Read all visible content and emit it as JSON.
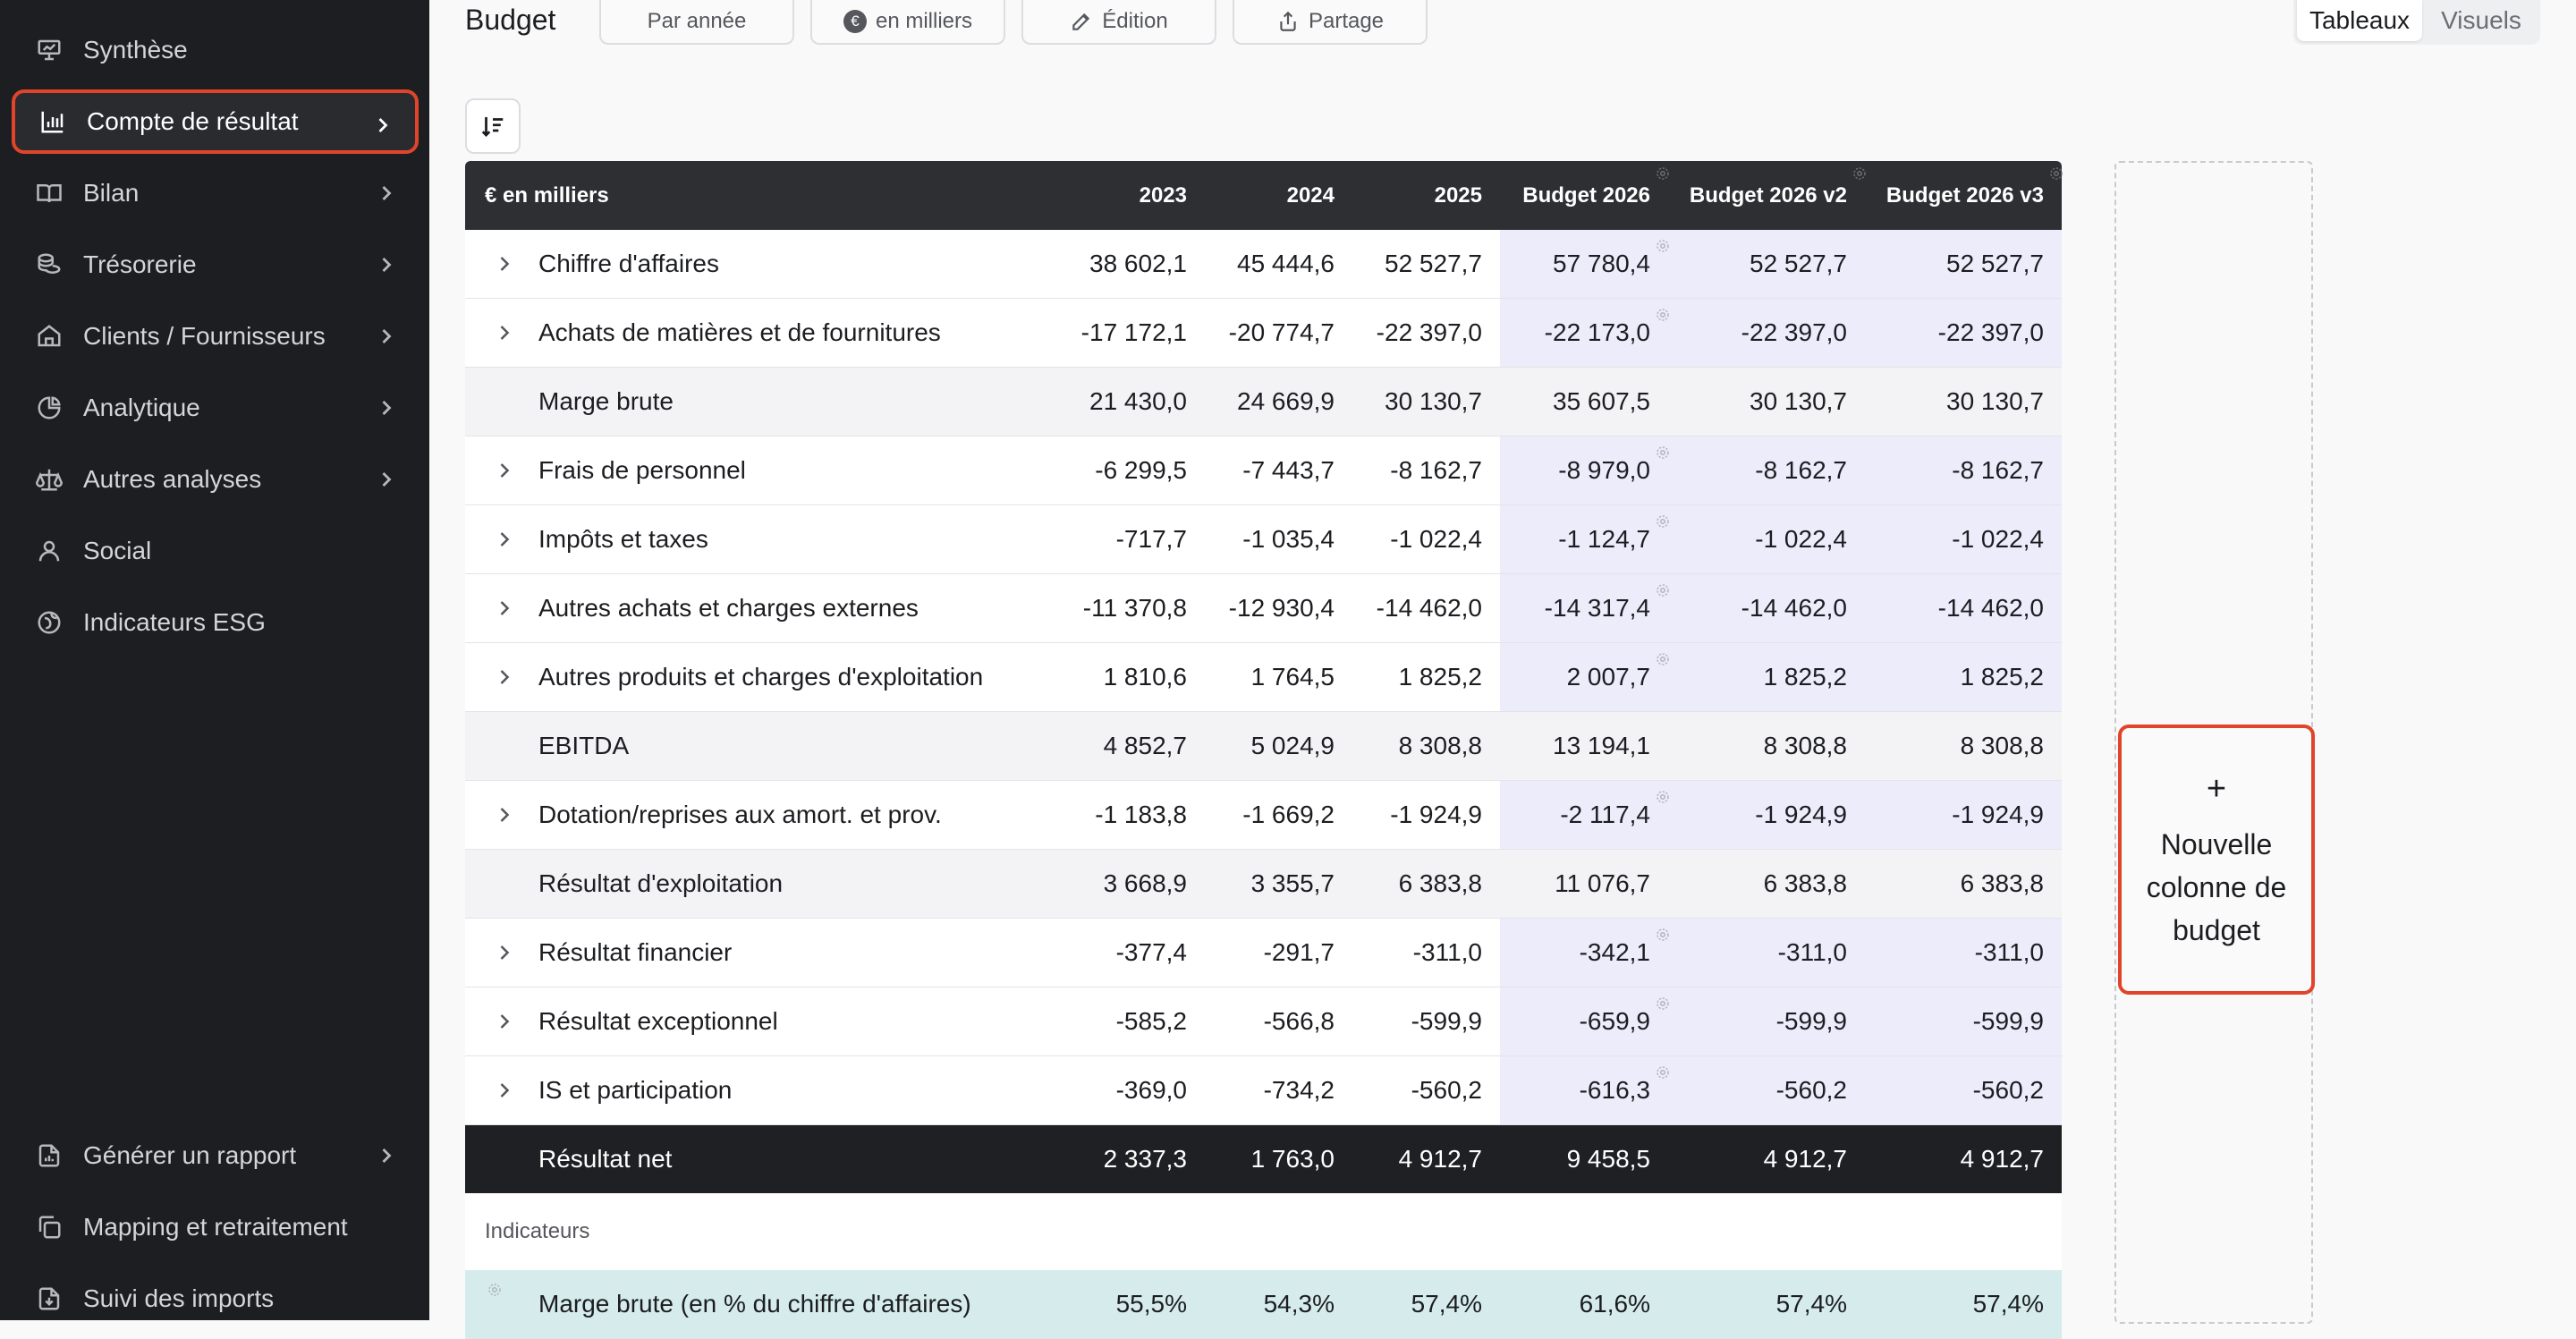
{
  "sidebar": {
    "items": [
      {
        "label": "Synthèse",
        "icon": "presentation-icon",
        "chevron": false
      },
      {
        "label": "Compte de résultat",
        "icon": "bar-chart-icon",
        "chevron": true
      },
      {
        "label": "Bilan",
        "icon": "book-icon",
        "chevron": true
      },
      {
        "label": "Trésorerie",
        "icon": "coins-icon",
        "chevron": true
      },
      {
        "label": "Clients / Fournisseurs",
        "icon": "store-icon",
        "chevron": true
      },
      {
        "label": "Analytique",
        "icon": "pie-chart-icon",
        "chevron": true
      },
      {
        "label": "Autres analyses",
        "icon": "scale-icon",
        "chevron": true
      },
      {
        "label": "Social",
        "icon": "user-icon",
        "chevron": false
      },
      {
        "label": "Indicateurs ESG",
        "icon": "leaf-globe-icon",
        "chevron": false
      }
    ],
    "bottom_items": [
      {
        "label": "Générer un rapport",
        "icon": "file-chart-icon",
        "chevron": true
      },
      {
        "label": "Mapping et retraitement",
        "icon": "copy-icon",
        "chevron": false
      },
      {
        "label": "Suivi des imports",
        "icon": "file-import-icon",
        "chevron": false
      }
    ]
  },
  "header": {
    "title": "Budget",
    "buttons": {
      "par_annee": "Par année",
      "unit": "en milliers",
      "unit_badge": "€",
      "edition": "Édition",
      "partage": "Partage"
    },
    "view_toggle": {
      "tableaux": "Tableaux",
      "visuels": "Visuels"
    }
  },
  "table": {
    "header": {
      "label": "€ en milliers",
      "cols": [
        "2023",
        "2024",
        "2025",
        "Budget 2026",
        "Budget 2026 v2",
        "Budget 2026 v3"
      ]
    },
    "rows": [
      {
        "label": "Chiffre d'affaires",
        "values": [
          "38 602,1",
          "45 444,6",
          "52 527,7",
          "57 780,4",
          "52 527,7",
          "52 527,7"
        ]
      },
      {
        "label": "Achats de matières et de fournitures",
        "values": [
          "-17 172,1",
          "-20 774,7",
          "-22 397,0",
          "-22 173,0",
          "-22 397,0",
          "-22 397,0"
        ]
      },
      {
        "label": "Marge brute",
        "values": [
          "21 430,0",
          "24 669,9",
          "30 130,7",
          "35 607,5",
          "30 130,7",
          "30 130,7"
        ]
      },
      {
        "label": "Frais de personnel",
        "values": [
          "-6 299,5",
          "-7 443,7",
          "-8 162,7",
          "-8 979,0",
          "-8 162,7",
          "-8 162,7"
        ]
      },
      {
        "label": "Impôts et taxes",
        "values": [
          "-717,7",
          "-1 035,4",
          "-1 022,4",
          "-1 124,7",
          "-1 022,4",
          "-1 022,4"
        ]
      },
      {
        "label": "Autres achats et charges externes",
        "values": [
          "-11 370,8",
          "-12 930,4",
          "-14 462,0",
          "-14 317,4",
          "-14 462,0",
          "-14 462,0"
        ]
      },
      {
        "label": "Autres produits et charges d'exploitation",
        "values": [
          "1 810,6",
          "1 764,5",
          "1 825,2",
          "2 007,7",
          "1 825,2",
          "1 825,2"
        ]
      },
      {
        "label": "EBITDA",
        "values": [
          "4 852,7",
          "5 024,9",
          "8 308,8",
          "13 194,1",
          "8 308,8",
          "8 308,8"
        ]
      },
      {
        "label": "Dotation/reprises aux amort. et prov.",
        "values": [
          "-1 183,8",
          "-1 669,2",
          "-1 924,9",
          "-2 117,4",
          "-1 924,9",
          "-1 924,9"
        ]
      },
      {
        "label": "Résultat d'exploitation",
        "values": [
          "3 668,9",
          "3 355,7",
          "6 383,8",
          "11 076,7",
          "6 383,8",
          "6 383,8"
        ]
      },
      {
        "label": "Résultat financier",
        "values": [
          "-377,4",
          "-291,7",
          "-311,0",
          "-342,1",
          "-311,0",
          "-311,0"
        ]
      },
      {
        "label": "Résultat exceptionnel",
        "values": [
          "-585,2",
          "-566,8",
          "-599,9",
          "-659,9",
          "-599,9",
          "-599,9"
        ]
      },
      {
        "label": "IS et participation",
        "values": [
          "-369,0",
          "-734,2",
          "-560,2",
          "-616,3",
          "-560,2",
          "-560,2"
        ]
      },
      {
        "label": "Résultat net",
        "values": [
          "2 337,3",
          "1 763,0",
          "4 912,7",
          "9 458,5",
          "4 912,7",
          "4 912,7"
        ]
      }
    ],
    "indicators_title": "Indicateurs",
    "indicators": [
      {
        "label": "Marge brute (en % du chiffre d'affaires)",
        "values": [
          "55,5%",
          "54,3%",
          "57,4%",
          "61,6%",
          "57,4%",
          "57,4%"
        ]
      }
    ]
  },
  "new_column": {
    "plus": "+",
    "label": "Nouvelle colonne de budget"
  },
  "colors": {
    "accent_red": "#e0452b",
    "sidebar_bg": "#1d1e21",
    "budget_col_bg": "#ececfb",
    "indicator_bg": "#d6ecec"
  }
}
